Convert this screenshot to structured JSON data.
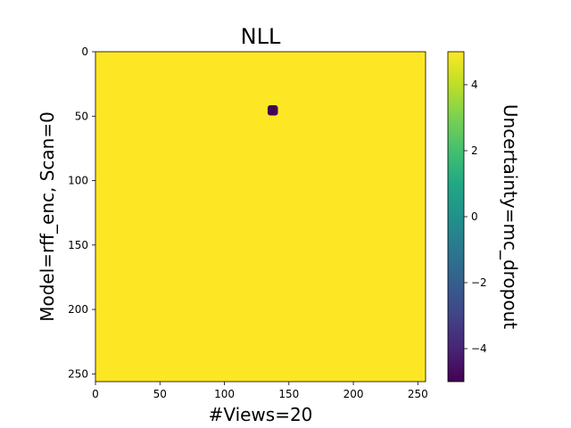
{
  "chart_data": {
    "type": "heatmap",
    "title": "NLL",
    "xlabel": "#Views=20",
    "ylabel": "Model=rff_enc, Scan=0",
    "x_ticks": [
      0,
      50,
      100,
      150,
      200,
      250
    ],
    "y_ticks": [
      0,
      50,
      100,
      150,
      200,
      250
    ],
    "xlim": [
      0,
      256
    ],
    "ylim": [
      256,
      0
    ],
    "y_axis_inverted": true,
    "colormap": "viridis",
    "background_value": 5,
    "background_color": "#fde725",
    "spot": {
      "x_center": 137.5,
      "y_center": 45.5,
      "radius": 4,
      "value": -5,
      "color": "#440154"
    },
    "colorbar": {
      "label": "Uncertainty=mc_dropout",
      "range": [
        -5,
        5
      ],
      "ticks": [
        -4,
        -2,
        0,
        2,
        4
      ],
      "tick_labels": [
        "−4",
        "−2",
        "0",
        "2",
        "4"
      ]
    }
  }
}
